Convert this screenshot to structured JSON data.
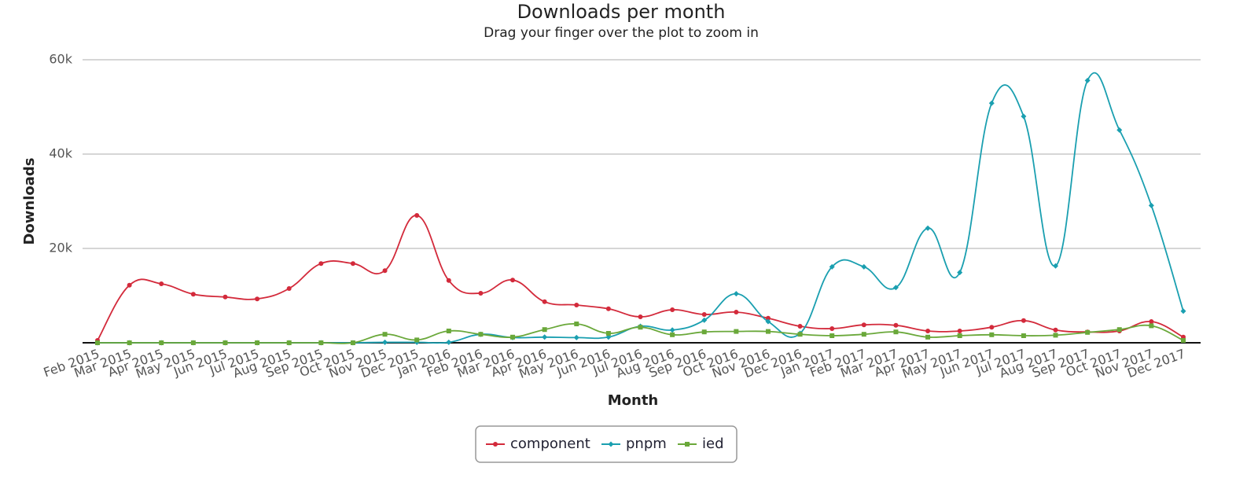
{
  "chart_data": {
    "type": "line",
    "title": "Downloads per month",
    "subtitle": "Drag your finger over the plot to zoom in",
    "x_label": "Month",
    "y_label": "Downloads",
    "categories": [
      "Feb 2015",
      "Mar 2015",
      "Apr 2015",
      "May 2015",
      "Jun 2015",
      "Jul 2015",
      "Aug 2015",
      "Sep 2015",
      "Oct 2015",
      "Nov 2015",
      "Dec 2015",
      "Jan 2016",
      "Feb 2016",
      "Mar 2016",
      "Apr 2016",
      "May 2016",
      "Jun 2016",
      "Jul 2016",
      "Aug 2016",
      "Sep 2016",
      "Oct 2016",
      "Nov 2016",
      "Dec 2016",
      "Jan 2017",
      "Feb 2017",
      "Mar 2017",
      "Apr 2017",
      "May 2017",
      "Jun 2017",
      "Jul 2017",
      "Aug 2017",
      "Sep 2017",
      "Oct 2017",
      "Nov 2017",
      "Dec 2017"
    ],
    "series": [
      {
        "name": "component",
        "color": "#d32a3b",
        "marker": "circle",
        "values": [
          500,
          12200,
          12500,
          10300,
          9700,
          9300,
          11500,
          16800,
          16800,
          15300,
          27000,
          13200,
          10500,
          13300,
          8700,
          8000,
          7200,
          5500,
          7000,
          6000,
          6500,
          5200,
          3500,
          3000,
          3800,
          3700,
          2500,
          2500,
          3300,
          4700,
          2700,
          2300,
          2500,
          4500,
          1200
        ]
      },
      {
        "name": "pnpm",
        "color": "#1a9fb0",
        "marker": "diamond",
        "values": [
          0,
          0,
          0,
          0,
          0,
          0,
          0,
          0,
          0,
          100,
          100,
          100,
          1800,
          1100,
          1200,
          1100,
          1200,
          3500,
          2700,
          4800,
          10400,
          4500,
          2000,
          16100,
          16100,
          11700,
          24300,
          14900,
          50800,
          48000,
          16300,
          55600,
          45100,
          29100,
          6700
        ]
      },
      {
        "name": "ied",
        "color": "#6aa83a",
        "marker": "square",
        "values": [
          0,
          0,
          0,
          0,
          0,
          0,
          0,
          0,
          0,
          1800,
          600,
          2500,
          1800,
          1200,
          2800,
          4000,
          2000,
          3300,
          1700,
          2300,
          2400,
          2400,
          1800,
          1500,
          1800,
          2300,
          1200,
          1500,
          1700,
          1500,
          1600,
          2200,
          2800,
          3600,
          500
        ]
      }
    ],
    "ylim": [
      0,
      60000
    ],
    "yticks": [
      {
        "value": 20000,
        "label": "20k"
      },
      {
        "value": 40000,
        "label": "40k"
      },
      {
        "value": 60000,
        "label": "60k"
      }
    ],
    "grid": true,
    "legend": "bottom"
  }
}
